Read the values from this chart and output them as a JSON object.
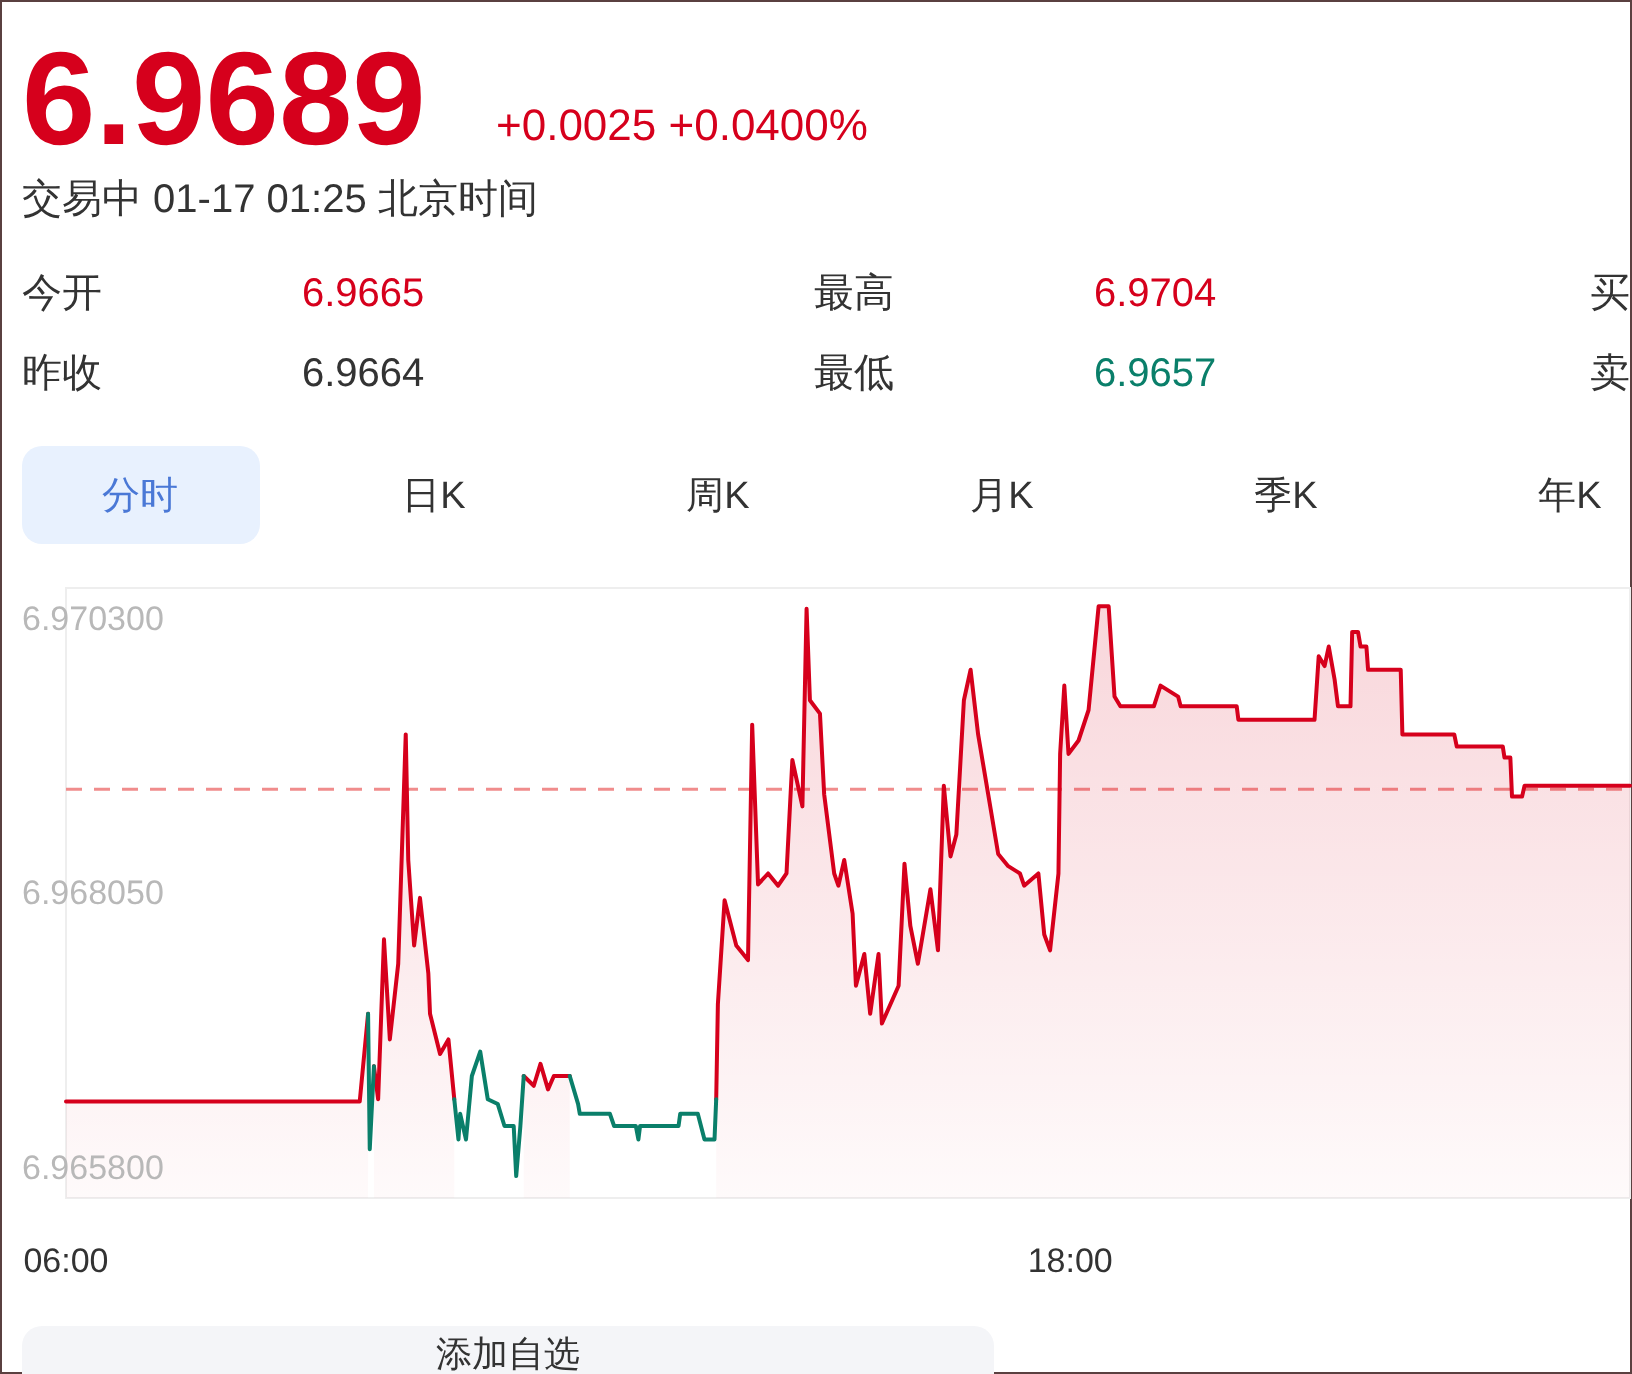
{
  "chart_data": {
    "type": "line",
    "title": "6.9689",
    "subtitle": "+0.0025 +0.0400%",
    "annotations": [
      "交易中 01-17 01:25 北京时间",
      "今开",
      "6.9665",
      "最高",
      "6.9704",
      "买",
      "昨收",
      "6.9664",
      "最低",
      "6.9657",
      "卖",
      "分时",
      "日K",
      "周K",
      "月K",
      "季K",
      "年K",
      "添加自选"
    ],
    "x": [
      6.0,
      9.51,
      9.61,
      9.63,
      9.68,
      9.73,
      9.8,
      9.87,
      9.97,
      10.06,
      10.09,
      10.16,
      10.23,
      10.33,
      10.35,
      10.47,
      10.57,
      10.64,
      10.69,
      10.71,
      10.78,
      10.85,
      10.95,
      11.04,
      11.16,
      11.24,
      11.35,
      11.38,
      11.43,
      11.47,
      11.59,
      11.67,
      11.76,
      11.83,
      12.02,
      12.12,
      12.14,
      12.5,
      12.55,
      12.81,
      12.84,
      12.86,
      13.32,
      13.34,
      13.55,
      13.63,
      13.75,
      13.77,
      13.79,
      13.87,
      14.01,
      14.15,
      14.2,
      14.27,
      14.39,
      14.51,
      14.61,
      14.68,
      14.8,
      14.85,
      14.89,
      15.01,
      15.06,
      15.18,
      15.23,
      15.3,
      15.4,
      15.44,
      15.54,
      15.61,
      15.71,
      15.75,
      15.95,
      16.02,
      16.09,
      16.18,
      16.33,
      16.42,
      16.49,
      16.57,
      16.64,
      16.73,
      16.81,
      16.9,
      17.02,
      17.14,
      17.26,
      17.4,
      17.45,
      17.62,
      17.69,
      17.76,
      17.86,
      17.88,
      17.93,
      17.98,
      18.1,
      18.22,
      18.34,
      18.46,
      18.53,
      18.6,
      19.0,
      19.08,
      19.29,
      19.32,
      19.99,
      20.01,
      20.92,
      20.97,
      21.04,
      21.09,
      21.16,
      21.2,
      21.35,
      21.37,
      21.44,
      21.47,
      21.54,
      21.56,
      21.95,
      21.97,
      22.59,
      22.62,
      23.17,
      23.19,
      23.26,
      23.28,
      23.4,
      23.43,
      24.69
    ],
    "xlim": [
      6,
      24.69
    ],
    "xticks": [
      {
        "value": 6,
        "label": "06:00"
      },
      {
        "value": 18,
        "label": "18:00"
      }
    ],
    "ylim": [
      6.96555,
      6.97055
    ],
    "yticks": [
      {
        "value": 6.9658,
        "label": "6.965800"
      },
      {
        "value": 6.96805,
        "label": "6.968050"
      },
      {
        "value": 6.9703,
        "label": "6.970300"
      }
    ],
    "series": [
      {
        "type": "area",
        "color": "#d6001c",
        "values": [
          6.96634,
          6.96634,
          6.96706,
          null,
          6.96663,
          6.96636,
          6.96767,
          6.96685,
          6.96747,
          6.96935,
          6.96832,
          6.96762,
          6.96801,
          6.96739,
          6.96706,
          6.96673,
          6.96685,
          6.96636,
          null,
          null,
          null,
          null,
          null,
          null,
          null,
          null,
          null,
          null,
          null,
          6.96655,
          6.96647,
          6.96665,
          6.96644,
          6.96655,
          6.96655,
          null,
          null,
          null,
          null,
          null,
          null,
          null,
          null,
          null,
          null,
          null,
          null,
          6.96636,
          6.96714,
          6.96799,
          6.96762,
          6.9675,
          6.96943,
          6.96812,
          6.96821,
          6.96811,
          6.96821,
          6.96914,
          6.96876,
          6.97038,
          6.96963,
          6.96952,
          6.96886,
          6.96821,
          6.96811,
          6.96832,
          6.96788,
          6.96729,
          6.96755,
          6.96706,
          6.96755,
          6.96698,
          6.96729,
          6.96829,
          6.96778,
          6.96747,
          6.96808,
          6.96758,
          6.96893,
          6.96835,
          6.96853,
          6.96963,
          6.96988,
          6.96935,
          6.96886,
          6.96837,
          6.96827,
          6.96821,
          6.96811,
          6.96821,
          6.96771,
          6.96758,
          6.96821,
          6.96919,
          6.96975,
          6.96919,
          6.9693,
          6.96955,
          6.9704,
          6.9704,
          6.96966,
          6.96958,
          6.96958,
          6.96975,
          6.96966,
          6.96958,
          6.96958,
          6.96947,
          6.96947,
          6.96999,
          6.96991,
          6.97007,
          6.9698,
          6.96958,
          6.96958,
          6.97019,
          6.97019,
          6.97007,
          6.97007,
          6.96988,
          6.96988,
          6.96935,
          6.96935,
          6.96925,
          6.96925,
          6.96916,
          6.96916,
          6.96884,
          6.96884,
          6.96893,
          6.96893
        ]
      },
      {
        "type": "line",
        "color": "#0a7f6a",
        "values": [
          null,
          null,
          6.96706,
          6.96595,
          6.96663,
          null,
          null,
          null,
          null,
          null,
          null,
          null,
          null,
          null,
          null,
          null,
          null,
          6.96636,
          6.96603,
          6.96624,
          6.96603,
          6.96655,
          6.96675,
          6.96636,
          6.96632,
          6.96614,
          6.96614,
          6.96573,
          6.96614,
          6.96655,
          null,
          null,
          null,
          null,
          6.96655,
          6.96632,
          6.96624,
          6.96624,
          6.96614,
          6.96614,
          6.96603,
          6.96614,
          6.96614,
          6.96624,
          6.96624,
          6.96603,
          6.96603,
          6.96636,
          null,
          null,
          null,
          null,
          null,
          null,
          null,
          null,
          null,
          null,
          null,
          null,
          null,
          null,
          null,
          null,
          null,
          null,
          null,
          null,
          null,
          null,
          null,
          null,
          null,
          null,
          null,
          null,
          null,
          null,
          null,
          null,
          null,
          null,
          null,
          null,
          null,
          null,
          null,
          null,
          null,
          null,
          null,
          null,
          null,
          null,
          null,
          null,
          null,
          null,
          null,
          null,
          null,
          null,
          null,
          null,
          null,
          null,
          null,
          null,
          null,
          null,
          null,
          null,
          null,
          null,
          null,
          null,
          null,
          null,
          null,
          null,
          null,
          null,
          null,
          null,
          null,
          null,
          null,
          null,
          null,
          null,
          null
        ]
      }
    ],
    "ref_lines": [
      {
        "axis": "y",
        "value": 6.9689,
        "color": "#f08c8c",
        "line_style": "dashed"
      }
    ]
  }
}
